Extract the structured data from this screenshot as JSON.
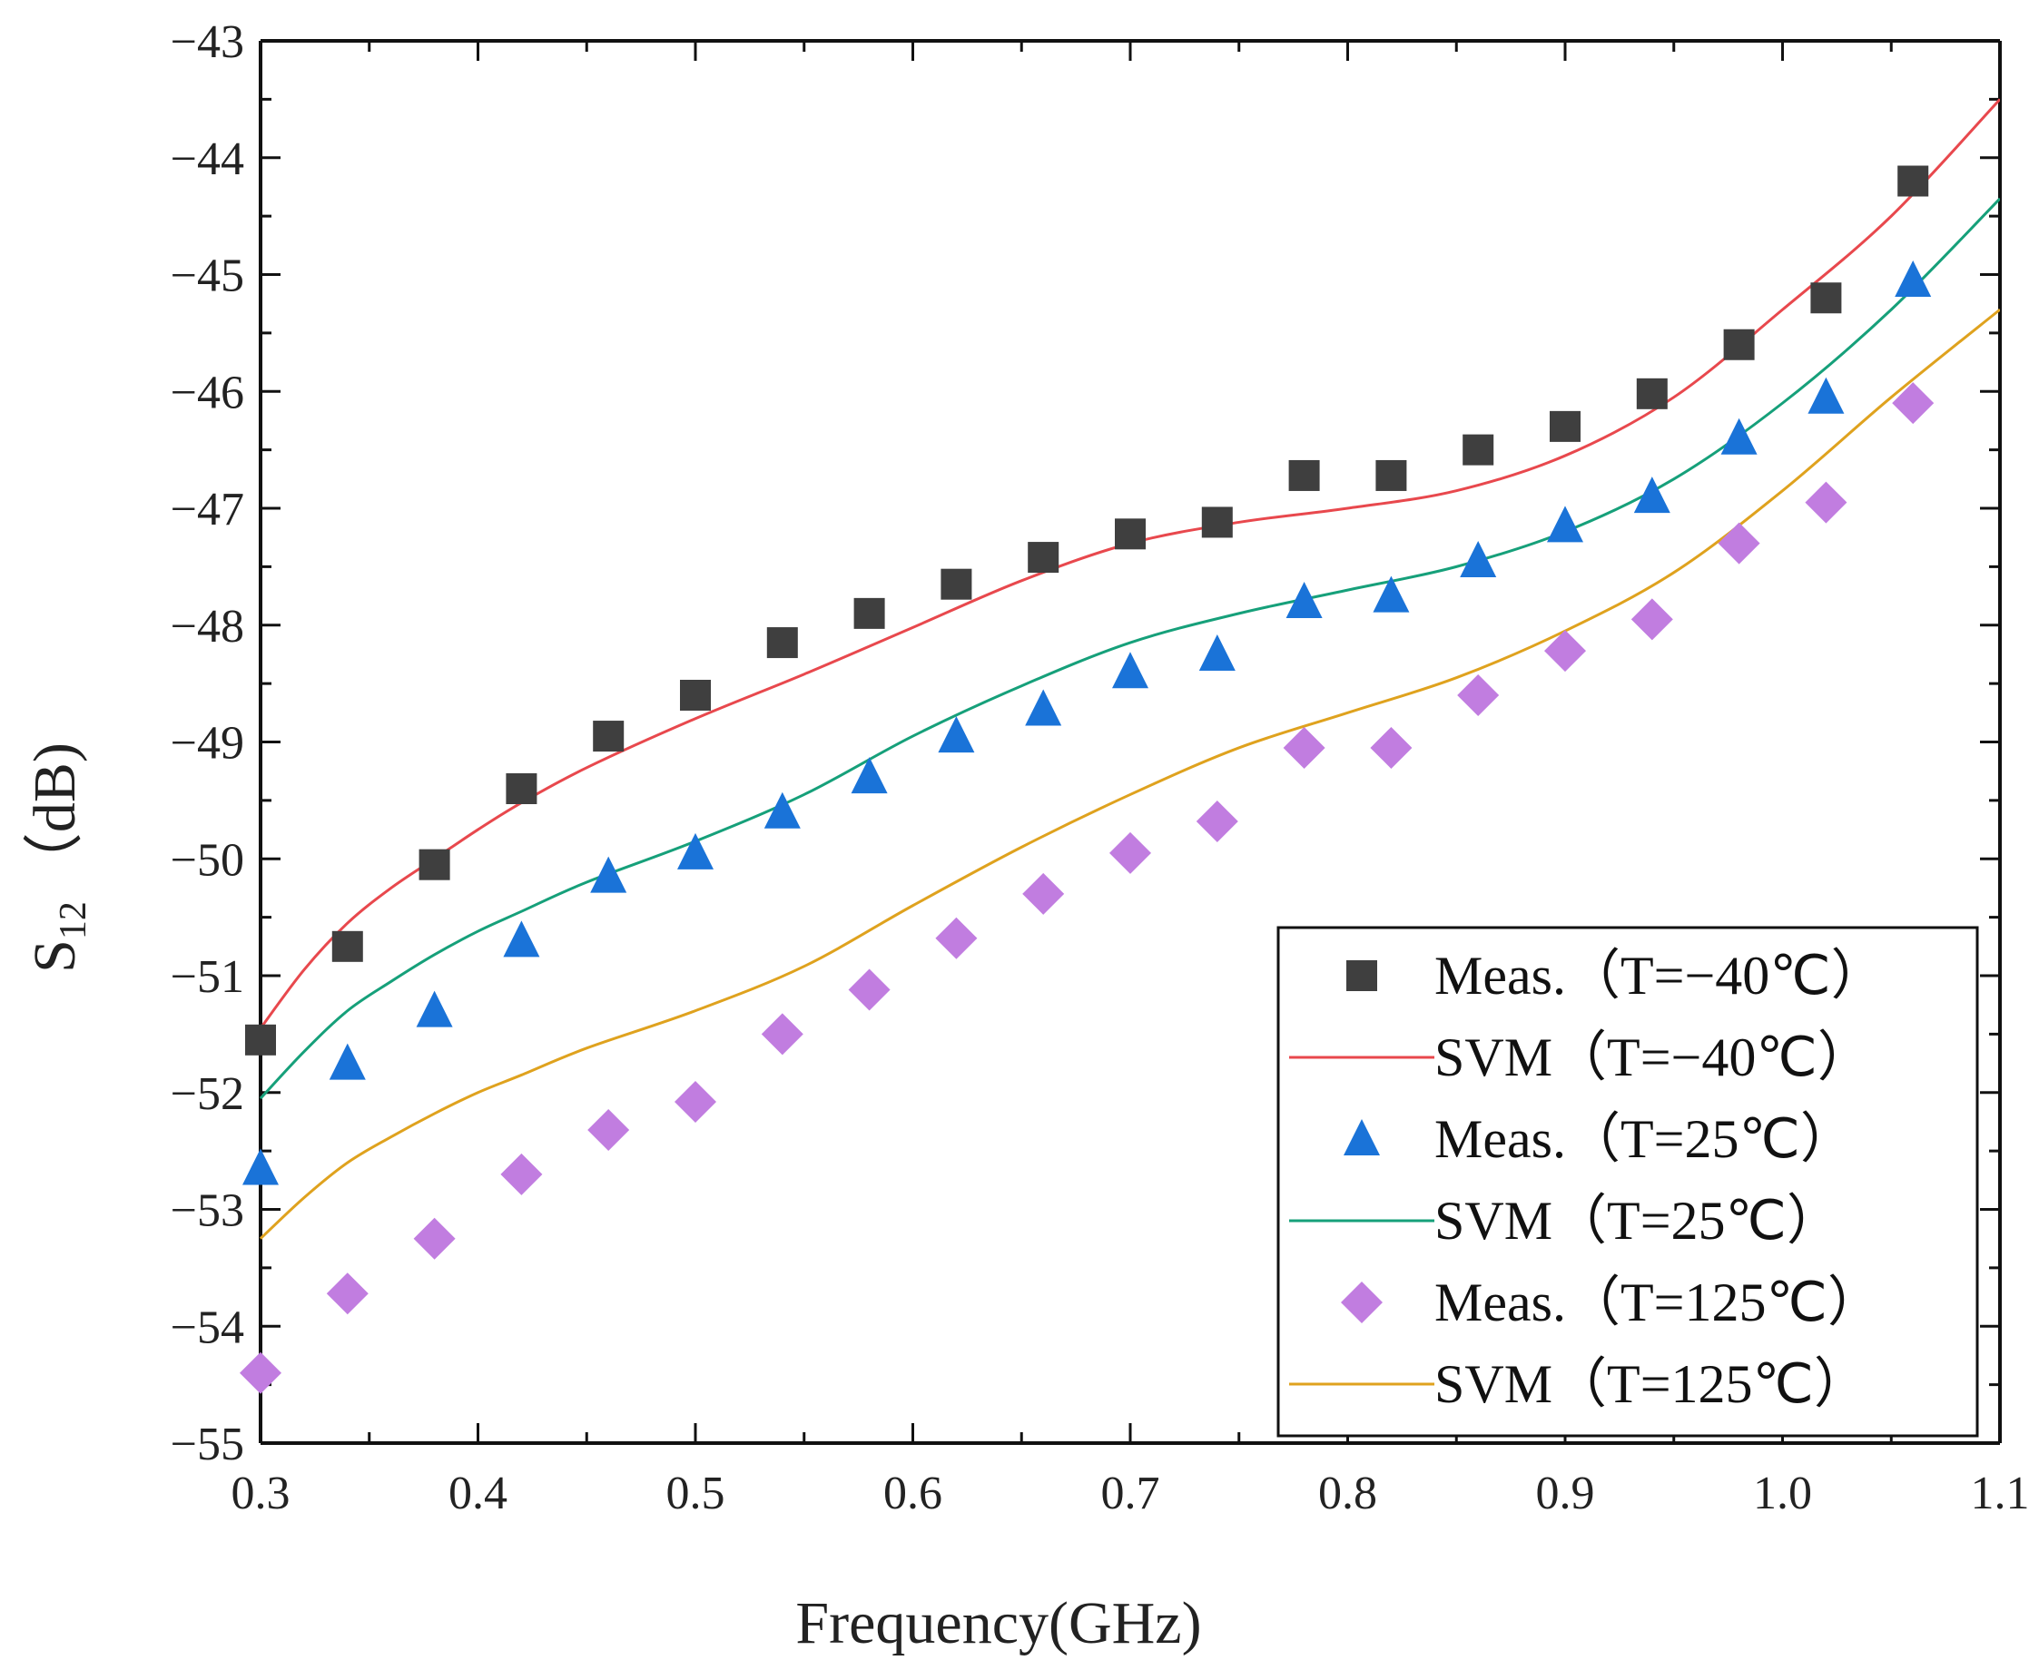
{
  "chart_data": {
    "type": "scatter",
    "title": "",
    "xlabel": "Frequency(GHz)",
    "ylabel": {
      "main": "S",
      "sub": "12",
      "unit": "（dB)"
    },
    "xlim": [
      0.3,
      1.1
    ],
    "ylim": [
      -55,
      -43
    ],
    "xticks": [
      0.3,
      0.4,
      0.5,
      0.6,
      0.7,
      0.8,
      0.9,
      1.0,
      1.1
    ],
    "xtick_labels": [
      "0.3",
      "0.4",
      "0.5",
      "0.6",
      "0.7",
      "0.8",
      "0.9",
      "1.0",
      "1.1"
    ],
    "yticks": [
      -43,
      -44,
      -45,
      -46,
      -47,
      -48,
      -49,
      -50,
      -51,
      -52,
      -53,
      -54,
      -55
    ],
    "ytick_labels": [
      "−43",
      "−44",
      "−45",
      "−46",
      "−47",
      "−48",
      "−49",
      "−50",
      "−51",
      "−52",
      "−53",
      "−54",
      "−55"
    ],
    "legend_position": "bottom-right",
    "series": [
      {
        "name": "Meas.（T=−40℃）",
        "kind": "markers",
        "marker": "square",
        "color": "#3f3f3f",
        "x": [
          0.3,
          0.34,
          0.38,
          0.42,
          0.46,
          0.5,
          0.54,
          0.58,
          0.62,
          0.66,
          0.7,
          0.74,
          0.78,
          0.82,
          0.86,
          0.9,
          0.94,
          0.98,
          1.02,
          1.06
        ],
        "y": [
          -51.55,
          -50.75,
          -50.05,
          -49.4,
          -48.95,
          -48.6,
          -48.15,
          -47.9,
          -47.65,
          -47.42,
          -47.22,
          -47.12,
          -46.72,
          -46.72,
          -46.5,
          -46.3,
          -46.02,
          -45.6,
          -45.2,
          -44.2
        ]
      },
      {
        "name": "SVM（T=−40℃）",
        "kind": "line",
        "color": "#e8484d",
        "x": [
          0.3,
          0.32,
          0.34,
          0.36,
          0.38,
          0.4,
          0.42,
          0.45,
          0.5,
          0.55,
          0.6,
          0.65,
          0.7,
          0.75,
          0.8,
          0.85,
          0.9,
          0.95,
          1.0,
          1.05,
          1.1
        ],
        "y": [
          -51.45,
          -50.95,
          -50.55,
          -50.25,
          -50.0,
          -49.75,
          -49.52,
          -49.22,
          -48.8,
          -48.42,
          -48.02,
          -47.62,
          -47.3,
          -47.12,
          -47.0,
          -46.85,
          -46.55,
          -46.05,
          -45.3,
          -44.5,
          -43.5
        ]
      },
      {
        "name": "Meas.（T=25℃）",
        "kind": "markers",
        "marker": "triangle",
        "color": "#1a73d8",
        "x": [
          0.3,
          0.34,
          0.38,
          0.42,
          0.46,
          0.5,
          0.54,
          0.58,
          0.62,
          0.66,
          0.7,
          0.74,
          0.78,
          0.82,
          0.86,
          0.9,
          0.94,
          0.98,
          1.02,
          1.06
        ],
        "y": [
          -52.65,
          -51.75,
          -51.3,
          -50.7,
          -50.15,
          -49.95,
          -49.6,
          -49.3,
          -48.95,
          -48.72,
          -48.4,
          -48.25,
          -47.8,
          -47.75,
          -47.45,
          -47.15,
          -46.9,
          -46.4,
          -46.05,
          -45.05
        ]
      },
      {
        "name": "SVM（T=25℃）",
        "kind": "line",
        "color": "#16a07a",
        "x": [
          0.3,
          0.32,
          0.34,
          0.36,
          0.38,
          0.4,
          0.42,
          0.45,
          0.5,
          0.55,
          0.6,
          0.65,
          0.7,
          0.75,
          0.8,
          0.85,
          0.9,
          0.95,
          1.0,
          1.05,
          1.1
        ],
        "y": [
          -52.05,
          -51.65,
          -51.3,
          -51.05,
          -50.82,
          -50.62,
          -50.45,
          -50.2,
          -49.85,
          -49.45,
          -48.95,
          -48.52,
          -48.15,
          -47.9,
          -47.7,
          -47.5,
          -47.2,
          -46.75,
          -46.1,
          -45.3,
          -44.35
        ]
      },
      {
        "name": "Meas.（T=125℃）",
        "kind": "markers",
        "marker": "diamond",
        "color": "#c17de0",
        "x": [
          0.3,
          0.34,
          0.38,
          0.42,
          0.46,
          0.5,
          0.54,
          0.58,
          0.62,
          0.66,
          0.7,
          0.74,
          0.78,
          0.82,
          0.86,
          0.9,
          0.94,
          0.98,
          1.02,
          1.06
        ],
        "y": [
          -54.4,
          -53.72,
          -53.25,
          -52.7,
          -52.32,
          -52.08,
          -51.5,
          -51.12,
          -50.68,
          -50.3,
          -49.95,
          -49.68,
          -49.05,
          -49.05,
          -48.6,
          -48.22,
          -47.95,
          -47.3,
          -46.95,
          -46.1
        ]
      },
      {
        "name": "SVM（T=125℃）",
        "kind": "line",
        "color": "#dfa21e",
        "x": [
          0.3,
          0.32,
          0.34,
          0.36,
          0.38,
          0.4,
          0.42,
          0.45,
          0.5,
          0.55,
          0.6,
          0.65,
          0.7,
          0.75,
          0.8,
          0.85,
          0.9,
          0.95,
          1.0,
          1.05,
          1.1
        ],
        "y": [
          -53.25,
          -52.9,
          -52.6,
          -52.38,
          -52.18,
          -52.0,
          -51.85,
          -51.62,
          -51.3,
          -50.92,
          -50.4,
          -49.9,
          -49.45,
          -49.05,
          -48.75,
          -48.45,
          -48.05,
          -47.55,
          -46.85,
          -46.05,
          -45.3
        ]
      }
    ]
  }
}
